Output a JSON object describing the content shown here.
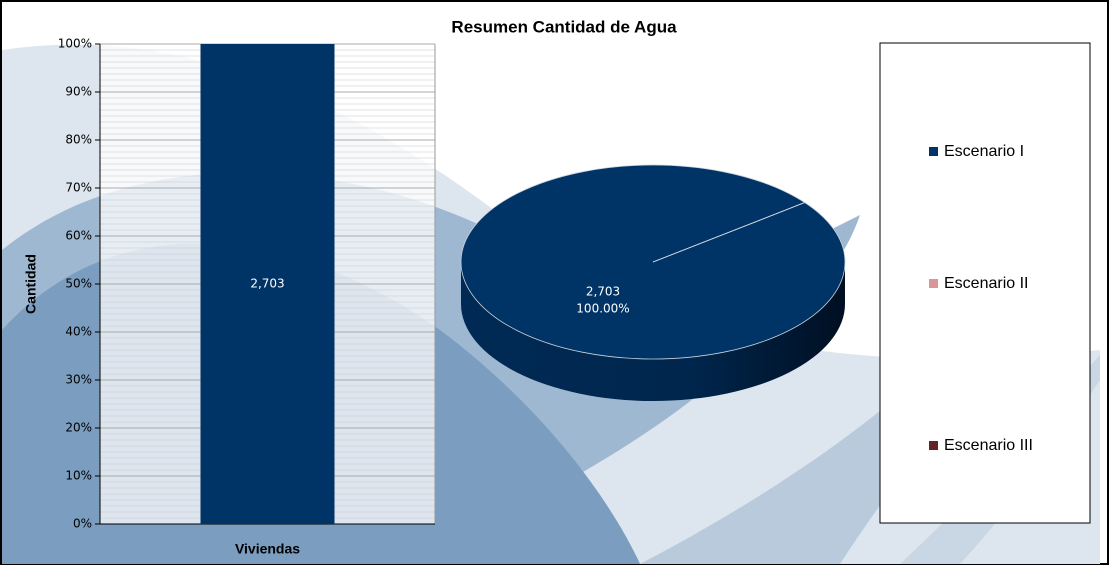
{
  "title": "Resumen Cantidad de Agua",
  "chart_data": [
    {
      "type": "bar",
      "stacked": true,
      "categories": [
        "Viviendas"
      ],
      "ylabel": "Cantidad",
      "ylim": [
        0,
        100
      ],
      "yticks": [
        {
          "value": 0,
          "label": "0%"
        },
        {
          "value": 10,
          "label": "10%"
        },
        {
          "value": 20,
          "label": "20%"
        },
        {
          "value": 30,
          "label": "30%"
        },
        {
          "value": 40,
          "label": "40%"
        },
        {
          "value": 50,
          "label": "50%"
        },
        {
          "value": 60,
          "label": "60%"
        },
        {
          "value": 70,
          "label": "70%"
        },
        {
          "value": 80,
          "label": "80%"
        },
        {
          "value": 90,
          "label": "90%"
        },
        {
          "value": 100,
          "label": "100%"
        }
      ],
      "grid": true,
      "series": [
        {
          "name": "Escenario I",
          "color": "#003366",
          "values": [
            100
          ],
          "data_labels": [
            {
              "value": 2703,
              "label": "2,703"
            }
          ]
        },
        {
          "name": "Escenario II",
          "color": "#d99694",
          "values": [
            0
          ]
        },
        {
          "name": "Escenario III",
          "color": "#632523",
          "values": [
            0
          ]
        }
      ],
      "legend": "right"
    },
    {
      "type": "pie",
      "three_d": true,
      "categories": [
        "Escenario I",
        "Escenario II",
        "Escenario III"
      ],
      "colors": [
        "#003366",
        "#d99694",
        "#632523"
      ],
      "values": [
        100,
        0,
        0
      ],
      "value_labels": [
        "100.00%",
        null,
        null
      ],
      "data_labels": [
        {
          "value": 2703,
          "label": "2,703"
        },
        null,
        null
      ]
    }
  ]
}
